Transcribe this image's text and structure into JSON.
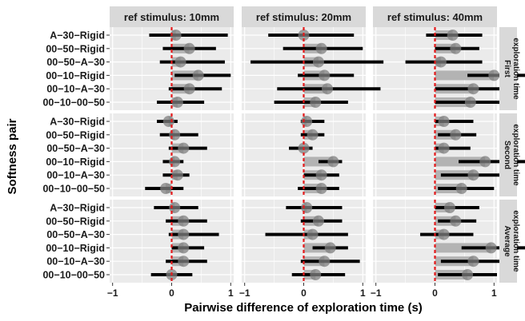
{
  "chart_data": {
    "type": "dot-range faceted",
    "xlabel": "Pairwise difference of exploration time (s)",
    "ylabel": "Softness pair",
    "x_ticks": [
      -1,
      0,
      1
    ],
    "x_tick_labels": [
      "−1",
      "0",
      "1"
    ],
    "x_range": [
      -1.05,
      1.05
    ],
    "reference_line_x": 0,
    "categories": [
      "A−30−Rigid",
      "00−50−Rigid",
      "00−50−A−30",
      "00−10−Rigid",
      "00−10−A−30",
      "00−10−00−50"
    ],
    "columns": [
      "ref stimulus: 10mm",
      "ref stimulus: 20mm",
      "ref stimulus: 40mm"
    ],
    "rows": [
      "First exploration time",
      "Second exploration time",
      "Average exploration time"
    ],
    "colors": {
      "panel_bg": "#ebebeb",
      "strip_bg": "#d9d9d9",
      "grid": "#ffffff",
      "point": "#808080",
      "bar": "#b3b3b3",
      "ci": "#000000",
      "ref_line": "#e41a1c"
    },
    "panels": [
      {
        "row": 0,
        "col": 0,
        "values": [
          {
            "mean": 0.07,
            "lo": -0.38,
            "hi": 0.95,
            "bar": 0.07
          },
          {
            "mean": 0.3,
            "lo": -0.15,
            "hi": 0.75,
            "bar": 0.3
          },
          {
            "mean": 0.15,
            "lo": -0.2,
            "hi": 0.9,
            "bar": 0.15
          },
          {
            "mean": 0.45,
            "lo": 0.05,
            "hi": 1.0,
            "bar": 0.45
          },
          {
            "mean": 0.3,
            "lo": -0.05,
            "hi": 0.85,
            "bar": 0.3
          },
          {
            "mean": 0.1,
            "lo": -0.25,
            "hi": 0.55,
            "bar": 0.1
          }
        ]
      },
      {
        "row": 0,
        "col": 1,
        "values": [
          {
            "mean": 0.0,
            "lo": -0.6,
            "hi": 0.85,
            "bar": 0.0
          },
          {
            "mean": 0.3,
            "lo": -0.35,
            "hi": 1.0,
            "bar": 0.3
          },
          {
            "mean": 0.25,
            "lo": -0.9,
            "hi": 1.35,
            "bar": 0.25
          },
          {
            "mean": 0.35,
            "lo": -0.1,
            "hi": 0.85,
            "bar": 0.35
          },
          {
            "mean": 0.4,
            "lo": -0.45,
            "hi": 1.3,
            "bar": 0.4
          },
          {
            "mean": 0.2,
            "lo": -0.5,
            "hi": 0.75,
            "bar": 0.2
          }
        ]
      },
      {
        "row": 0,
        "col": 2,
        "values": [
          {
            "mean": 0.3,
            "lo": -0.15,
            "hi": 0.8,
            "bar": 0.3
          },
          {
            "mean": 0.35,
            "lo": 0.0,
            "hi": 0.75,
            "bar": 0.35
          },
          {
            "mean": 0.1,
            "lo": -0.5,
            "hi": 0.8,
            "bar": 0.1
          },
          {
            "mean": 1.0,
            "lo": 0.55,
            "hi": 1.75,
            "bar": 1.0
          },
          {
            "mean": 0.65,
            "lo": 0.0,
            "hi": 1.4,
            "bar": 0.65
          },
          {
            "mean": 0.6,
            "lo": 0.0,
            "hi": 1.15,
            "bar": 0.6
          }
        ]
      },
      {
        "row": 1,
        "col": 0,
        "values": [
          {
            "mean": -0.05,
            "lo": -0.25,
            "hi": 0.1,
            "bar": -0.05
          },
          {
            "mean": 0.05,
            "lo": -0.2,
            "hi": 0.45,
            "bar": 0.05
          },
          {
            "mean": 0.2,
            "lo": -0.05,
            "hi": 0.6,
            "bar": 0.2
          },
          {
            "mean": 0.05,
            "lo": -0.15,
            "hi": 0.2,
            "bar": 0.05
          },
          {
            "mean": 0.1,
            "lo": -0.15,
            "hi": 0.3,
            "bar": 0.1
          },
          {
            "mean": -0.1,
            "lo": -0.45,
            "hi": 0.2,
            "bar": -0.1
          }
        ]
      },
      {
        "row": 1,
        "col": 1,
        "values": [
          {
            "mean": 0.05,
            "lo": -0.05,
            "hi": 0.35,
            "bar": 0.05
          },
          {
            "mean": 0.15,
            "lo": -0.05,
            "hi": 0.35,
            "bar": 0.15
          },
          {
            "mean": 0.0,
            "lo": -0.25,
            "hi": 0.15,
            "bar": 0.0
          },
          {
            "mean": 0.5,
            "lo": 0.25,
            "hi": 0.65,
            "bar": 0.5
          },
          {
            "mean": 0.3,
            "lo": 0.0,
            "hi": 0.6,
            "bar": 0.3
          },
          {
            "mean": 0.3,
            "lo": -0.1,
            "hi": 0.6,
            "bar": 0.3
          }
        ]
      },
      {
        "row": 1,
        "col": 2,
        "values": [
          {
            "mean": 0.15,
            "lo": 0.0,
            "hi": 0.65,
            "bar": 0.15
          },
          {
            "mean": 0.35,
            "lo": 0.05,
            "hi": 0.7,
            "bar": 0.35
          },
          {
            "mean": 0.15,
            "lo": 0.0,
            "hi": 0.6,
            "bar": 0.15
          },
          {
            "mean": 0.85,
            "lo": 0.4,
            "hi": 1.75,
            "bar": 0.85
          },
          {
            "mean": 0.65,
            "lo": 0.1,
            "hi": 1.2,
            "bar": 0.65
          },
          {
            "mean": 0.45,
            "lo": 0.05,
            "hi": 1.0,
            "bar": 0.45
          }
        ]
      },
      {
        "row": 2,
        "col": 0,
        "values": [
          {
            "mean": 0.05,
            "lo": -0.3,
            "hi": 0.45,
            "bar": 0.05
          },
          {
            "mean": 0.2,
            "lo": -0.1,
            "hi": 0.6,
            "bar": 0.2
          },
          {
            "mean": 0.2,
            "lo": -0.05,
            "hi": 0.8,
            "bar": 0.2
          },
          {
            "mean": 0.2,
            "lo": 0.0,
            "hi": 0.55,
            "bar": 0.2
          },
          {
            "mean": 0.2,
            "lo": -0.1,
            "hi": 0.6,
            "bar": 0.2
          },
          {
            "mean": 0.0,
            "lo": -0.35,
            "hi": 0.35,
            "bar": 0.0
          }
        ]
      },
      {
        "row": 2,
        "col": 1,
        "values": [
          {
            "mean": 0.05,
            "lo": -0.3,
            "hi": 0.65,
            "bar": 0.05
          },
          {
            "mean": 0.25,
            "lo": -0.05,
            "hi": 0.65,
            "bar": 0.25
          },
          {
            "mean": 0.15,
            "lo": -0.65,
            "hi": 0.75,
            "bar": 0.15
          },
          {
            "mean": 0.45,
            "lo": 0.15,
            "hi": 0.75,
            "bar": 0.45
          },
          {
            "mean": 0.35,
            "lo": -0.05,
            "hi": 0.95,
            "bar": 0.35
          },
          {
            "mean": 0.2,
            "lo": -0.2,
            "hi": 0.7,
            "bar": 0.2
          }
        ]
      },
      {
        "row": 2,
        "col": 2,
        "values": [
          {
            "mean": 0.25,
            "lo": 0.0,
            "hi": 0.75,
            "bar": 0.25
          },
          {
            "mean": 0.35,
            "lo": 0.05,
            "hi": 0.7,
            "bar": 0.35
          },
          {
            "mean": 0.15,
            "lo": -0.25,
            "hi": 0.65,
            "bar": 0.15
          },
          {
            "mean": 0.95,
            "lo": 0.45,
            "hi": 1.85,
            "bar": 0.95
          },
          {
            "mean": 0.65,
            "lo": 0.1,
            "hi": 1.3,
            "bar": 0.65
          },
          {
            "mean": 0.55,
            "lo": 0.05,
            "hi": 1.05,
            "bar": 0.55
          }
        ]
      }
    ]
  }
}
